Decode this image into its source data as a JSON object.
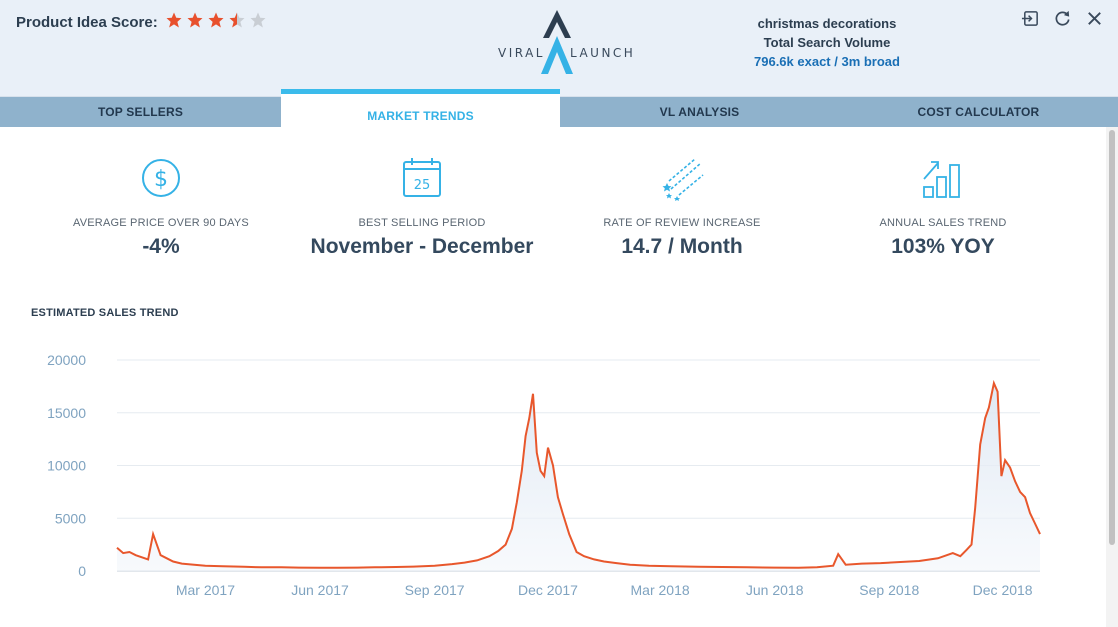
{
  "header": {
    "score_label": "Product Idea Score:",
    "score": 3.5,
    "score_max": 5,
    "logo_left": "VIRAL",
    "logo_right": "LAUNCH",
    "keyword": "christmas decorations",
    "volume_title": "Total Search Volume",
    "volume_value": "796.6k exact / 3m broad",
    "icons": [
      "exit-icon",
      "refresh-icon",
      "close-icon"
    ]
  },
  "tabs": [
    {
      "label": "TOP SELLERS",
      "active": false
    },
    {
      "label": "MARKET TRENDS",
      "active": true
    },
    {
      "label": "VL ANALYSIS",
      "active": false
    },
    {
      "label": "COST CALCULATOR",
      "active": false
    }
  ],
  "metrics": [
    {
      "icon": "dollar-icon",
      "label": "AVERAGE PRICE OVER 90 DAYS",
      "value": "-4%"
    },
    {
      "icon": "calendar-icon",
      "label": "BEST SELLING PERIOD",
      "value": "November - December",
      "calendar_day": "25"
    },
    {
      "icon": "shooting-stars-icon",
      "label": "RATE OF REVIEW INCREASE",
      "value": "14.7 / Month"
    },
    {
      "icon": "growth-chart-icon",
      "label": "ANNUAL SALES TREND",
      "value": "103% YOY"
    }
  ],
  "colors": {
    "accent": "#3bbbeb",
    "star": "#e8502d",
    "line": "#e8572c"
  },
  "chart_data": {
    "type": "line",
    "title": "ESTIMATED SALES TREND",
    "ylim": [
      0,
      20000
    ],
    "yticks": [
      "20000",
      "15000",
      "10000",
      "5000",
      "0"
    ],
    "xtick_labels": [
      "Mar 2017",
      "Jun 2017",
      "Sep 2017",
      "Dec 2017",
      "Mar 2018",
      "Jun 2018",
      "Sep 2018",
      "Dec 2018"
    ],
    "grid": true,
    "series": [
      {
        "x": [
          "2016-12-20",
          "2016-12-25",
          "2016-12-30",
          "2017-01-04",
          "2017-01-09",
          "2017-01-14",
          "2017-01-18",
          "2017-01-24",
          "2017-01-29",
          "2017-02-03",
          "2017-02-10",
          "2017-02-20",
          "2017-03-01",
          "2017-03-15",
          "2017-04-01",
          "2017-04-15",
          "2017-05-01",
          "2017-05-15",
          "2017-06-01",
          "2017-06-15",
          "2017-07-01",
          "2017-07-15",
          "2017-08-01",
          "2017-08-15",
          "2017-09-01",
          "2017-09-15",
          "2017-09-25",
          "2017-10-05",
          "2017-10-15",
          "2017-10-22",
          "2017-10-28",
          "2017-11-02",
          "2017-11-06",
          "2017-11-10",
          "2017-11-13",
          "2017-11-16",
          "2017-11-19",
          "2017-11-22",
          "2017-11-25",
          "2017-11-28",
          "2017-12-01",
          "2017-12-05",
          "2017-12-09",
          "2017-12-13",
          "2017-12-18",
          "2017-12-24",
          "2017-12-30",
          "2018-01-07",
          "2018-01-15",
          "2018-01-25",
          "2018-02-05",
          "2018-02-20",
          "2018-03-10",
          "2018-04-01",
          "2018-04-20",
          "2018-05-10",
          "2018-06-01",
          "2018-06-20",
          "2018-07-05",
          "2018-07-18",
          "2018-07-22",
          "2018-07-28",
          "2018-08-10",
          "2018-08-25",
          "2018-09-10",
          "2018-09-25",
          "2018-10-10",
          "2018-10-22",
          "2018-10-28",
          "2018-11-02",
          "2018-11-06",
          "2018-11-09",
          "2018-11-13",
          "2018-11-17",
          "2018-11-20",
          "2018-11-24",
          "2018-11-27",
          "2018-11-30",
          "2018-12-03",
          "2018-12-07",
          "2018-12-11",
          "2018-12-15",
          "2018-12-19",
          "2018-12-23",
          "2018-12-27",
          "2018-12-31"
        ],
        "y": [
          2200,
          1700,
          1800,
          1500,
          1300,
          1100,
          3500,
          1500,
          1200,
          900,
          700,
          600,
          500,
          450,
          400,
          350,
          350,
          320,
          300,
          300,
          320,
          350,
          380,
          420,
          500,
          650,
          800,
          1000,
          1400,
          1900,
          2500,
          4000,
          6500,
          9500,
          12800,
          14500,
          16800,
          11200,
          9500,
          9000,
          11700,
          10000,
          7000,
          5400,
          3500,
          1800,
          1400,
          1100,
          900,
          750,
          600,
          500,
          450,
          400,
          380,
          350,
          320,
          300,
          350,
          500,
          1600,
          600,
          700,
          750,
          850,
          950,
          1200,
          1700,
          1400,
          2000,
          2500,
          6000,
          12000,
          14500,
          15500,
          17800,
          17000,
          9000,
          10500,
          9800,
          8500,
          7500,
          7000,
          5500,
          4500,
          3500
        ]
      }
    ]
  }
}
